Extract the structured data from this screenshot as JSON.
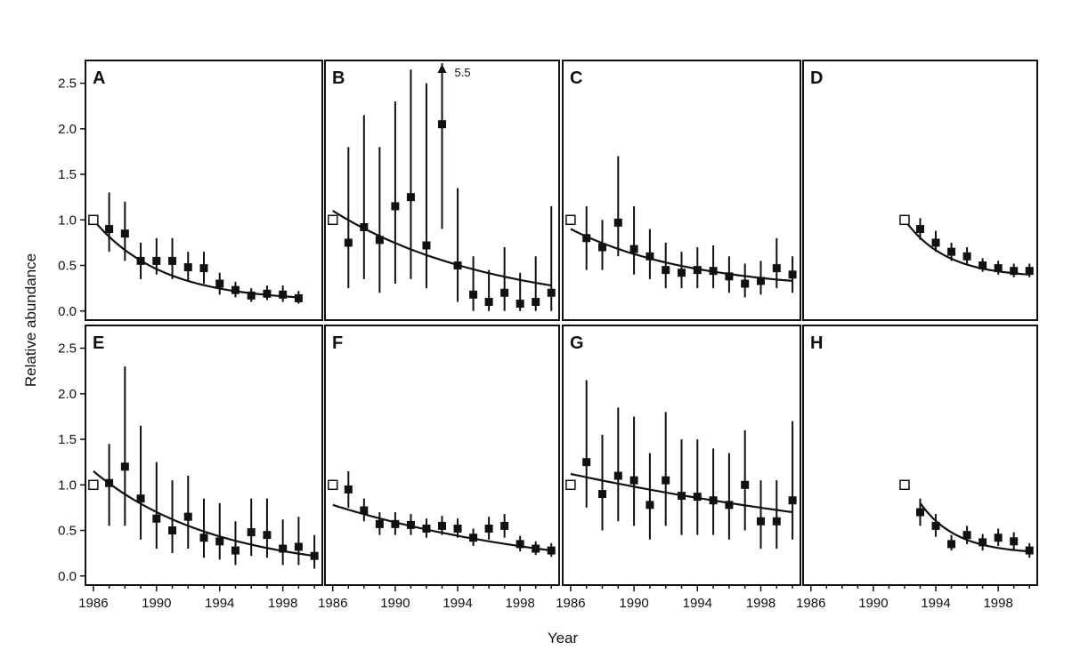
{
  "chart_data": {
    "type": "scatter",
    "xlabel": "Year",
    "ylabel": "Relative abundance",
    "ylim": [
      -0.1,
      2.75
    ],
    "y_ticks": [
      "0.0",
      "0.5",
      "1.0",
      "1.5",
      "2.0",
      "2.5"
    ],
    "x_ticks": [
      "1986",
      "1990",
      "1994",
      "1998"
    ],
    "xlim": [
      1985.5,
      2000.5
    ],
    "marker_legend": "open square = 1.0 reference",
    "panels": [
      {
        "letter": "A",
        "ref_year": 1986,
        "points": [
          {
            "year": 1987,
            "y": 0.9,
            "lo": 0.65,
            "hi": 1.3
          },
          {
            "year": 1988,
            "y": 0.85,
            "lo": 0.55,
            "hi": 1.2
          },
          {
            "year": 1989,
            "y": 0.55,
            "lo": 0.35,
            "hi": 0.75
          },
          {
            "year": 1990,
            "y": 0.55,
            "lo": 0.4,
            "hi": 0.8
          },
          {
            "year": 1991,
            "y": 0.55,
            "lo": 0.35,
            "hi": 0.8
          },
          {
            "year": 1992,
            "y": 0.48,
            "lo": 0.32,
            "hi": 0.65
          },
          {
            "year": 1993,
            "y": 0.47,
            "lo": 0.3,
            "hi": 0.65
          },
          {
            "year": 1994,
            "y": 0.3,
            "lo": 0.18,
            "hi": 0.42
          },
          {
            "year": 1995,
            "y": 0.23,
            "lo": 0.15,
            "hi": 0.32
          },
          {
            "year": 1996,
            "y": 0.17,
            "lo": 0.1,
            "hi": 0.25
          },
          {
            "year": 1997,
            "y": 0.19,
            "lo": 0.12,
            "hi": 0.28
          },
          {
            "year": 1998,
            "y": 0.18,
            "lo": 0.1,
            "hi": 0.28
          },
          {
            "year": 1999,
            "y": 0.14,
            "lo": 0.08,
            "hi": 0.22
          }
        ],
        "fit": {
          "start_year": 1986,
          "end_year": 1999,
          "y0": 1.0,
          "y1": 0.15,
          "curve": 1.0
        }
      },
      {
        "letter": "B",
        "ref_year": 1986,
        "note": "5.5",
        "arrow_year": 1993,
        "points": [
          {
            "year": 1987,
            "y": 0.75,
            "lo": 0.25,
            "hi": 1.8
          },
          {
            "year": 1988,
            "y": 0.92,
            "lo": 0.35,
            "hi": 2.15
          },
          {
            "year": 1989,
            "y": 0.78,
            "lo": 0.2,
            "hi": 1.8
          },
          {
            "year": 1990,
            "y": 1.15,
            "lo": 0.3,
            "hi": 2.3
          },
          {
            "year": 1991,
            "y": 1.25,
            "lo": 0.35,
            "hi": 2.65
          },
          {
            "year": 1992,
            "y": 0.72,
            "lo": 0.25,
            "hi": 2.5
          },
          {
            "year": 1993,
            "y": 2.05,
            "lo": 0.9,
            "hi": 2.72
          },
          {
            "year": 1994,
            "y": 0.5,
            "lo": 0.1,
            "hi": 1.35
          },
          {
            "year": 1995,
            "y": 0.18,
            "lo": 0.0,
            "hi": 0.6
          },
          {
            "year": 1996,
            "y": 0.1,
            "lo": 0.0,
            "hi": 0.45
          },
          {
            "year": 1997,
            "y": 0.2,
            "lo": 0.0,
            "hi": 0.7
          },
          {
            "year": 1998,
            "y": 0.08,
            "lo": 0.0,
            "hi": 0.42
          },
          {
            "year": 1999,
            "y": 0.1,
            "lo": 0.0,
            "hi": 0.6
          },
          {
            "year": 2000,
            "y": 0.2,
            "lo": 0.0,
            "hi": 1.15
          }
        ],
        "fit": {
          "start_year": 1986,
          "end_year": 2000,
          "y0": 1.1,
          "y1": 0.28,
          "curve": 0.45
        }
      },
      {
        "letter": "C",
        "ref_year": 1986,
        "points": [
          {
            "year": 1987,
            "y": 0.8,
            "lo": 0.45,
            "hi": 1.15
          },
          {
            "year": 1988,
            "y": 0.7,
            "lo": 0.45,
            "hi": 1.0
          },
          {
            "year": 1989,
            "y": 0.97,
            "lo": 0.6,
            "hi": 1.7
          },
          {
            "year": 1990,
            "y": 0.68,
            "lo": 0.4,
            "hi": 1.15
          },
          {
            "year": 1991,
            "y": 0.6,
            "lo": 0.35,
            "hi": 0.9
          },
          {
            "year": 1992,
            "y": 0.45,
            "lo": 0.25,
            "hi": 0.75
          },
          {
            "year": 1993,
            "y": 0.42,
            "lo": 0.25,
            "hi": 0.65
          },
          {
            "year": 1994,
            "y": 0.45,
            "lo": 0.25,
            "hi": 0.7
          },
          {
            "year": 1995,
            "y": 0.44,
            "lo": 0.25,
            "hi": 0.72
          },
          {
            "year": 1996,
            "y": 0.38,
            "lo": 0.2,
            "hi": 0.6
          },
          {
            "year": 1997,
            "y": 0.3,
            "lo": 0.15,
            "hi": 0.52
          },
          {
            "year": 1998,
            "y": 0.33,
            "lo": 0.18,
            "hi": 0.55
          },
          {
            "year": 1999,
            "y": 0.47,
            "lo": 0.25,
            "hi": 0.8
          },
          {
            "year": 2000,
            "y": 0.4,
            "lo": 0.2,
            "hi": 0.6
          }
        ],
        "fit": {
          "start_year": 1986,
          "end_year": 2000,
          "y0": 0.9,
          "y1": 0.33,
          "curve": 0.6
        }
      },
      {
        "letter": "D",
        "ref_year": 1992,
        "points": [
          {
            "year": 1993,
            "y": 0.9,
            "lo": 0.78,
            "hi": 1.02
          },
          {
            "year": 1994,
            "y": 0.75,
            "lo": 0.65,
            "hi": 0.88
          },
          {
            "year": 1995,
            "y": 0.65,
            "lo": 0.55,
            "hi": 0.75
          },
          {
            "year": 1996,
            "y": 0.6,
            "lo": 0.5,
            "hi": 0.7
          },
          {
            "year": 1997,
            "y": 0.5,
            "lo": 0.43,
            "hi": 0.58
          },
          {
            "year": 1998,
            "y": 0.47,
            "lo": 0.4,
            "hi": 0.55
          },
          {
            "year": 1999,
            "y": 0.44,
            "lo": 0.37,
            "hi": 0.52
          },
          {
            "year": 2000,
            "y": 0.44,
            "lo": 0.37,
            "hi": 0.52
          }
        ],
        "fit": {
          "start_year": 1992,
          "end_year": 2000,
          "y0": 1.0,
          "y1": 0.4,
          "curve": 1.0
        }
      },
      {
        "letter": "E",
        "ref_year": 1986,
        "points": [
          {
            "year": 1987,
            "y": 1.02,
            "lo": 0.55,
            "hi": 1.45
          },
          {
            "year": 1988,
            "y": 1.2,
            "lo": 0.55,
            "hi": 2.3
          },
          {
            "year": 1989,
            "y": 0.85,
            "lo": 0.4,
            "hi": 1.65
          },
          {
            "year": 1990,
            "y": 0.63,
            "lo": 0.3,
            "hi": 1.25
          },
          {
            "year": 1991,
            "y": 0.5,
            "lo": 0.25,
            "hi": 1.05
          },
          {
            "year": 1992,
            "y": 0.65,
            "lo": 0.3,
            "hi": 1.1
          },
          {
            "year": 1993,
            "y": 0.42,
            "lo": 0.2,
            "hi": 0.85
          },
          {
            "year": 1994,
            "y": 0.38,
            "lo": 0.18,
            "hi": 0.8
          },
          {
            "year": 1995,
            "y": 0.28,
            "lo": 0.12,
            "hi": 0.6
          },
          {
            "year": 1996,
            "y": 0.48,
            "lo": 0.22,
            "hi": 0.85
          },
          {
            "year": 1997,
            "y": 0.45,
            "lo": 0.2,
            "hi": 0.85
          },
          {
            "year": 1998,
            "y": 0.3,
            "lo": 0.12,
            "hi": 0.62
          },
          {
            "year": 1999,
            "y": 0.32,
            "lo": 0.12,
            "hi": 0.65
          },
          {
            "year": 2000,
            "y": 0.22,
            "lo": 0.08,
            "hi": 0.45
          }
        ],
        "fit": {
          "start_year": 1986,
          "end_year": 2000,
          "y0": 1.15,
          "y1": 0.22,
          "curve": 0.6
        }
      },
      {
        "letter": "F",
        "ref_year": 1986,
        "points": [
          {
            "year": 1987,
            "y": 0.95,
            "lo": 0.75,
            "hi": 1.15
          },
          {
            "year": 1988,
            "y": 0.72,
            "lo": 0.6,
            "hi": 0.85
          },
          {
            "year": 1989,
            "y": 0.57,
            "lo": 0.45,
            "hi": 0.7
          },
          {
            "year": 1990,
            "y": 0.57,
            "lo": 0.45,
            "hi": 0.7
          },
          {
            "year": 1991,
            "y": 0.56,
            "lo": 0.45,
            "hi": 0.68
          },
          {
            "year": 1992,
            "y": 0.52,
            "lo": 0.42,
            "hi": 0.63
          },
          {
            "year": 1993,
            "y": 0.55,
            "lo": 0.45,
            "hi": 0.66
          },
          {
            "year": 1994,
            "y": 0.52,
            "lo": 0.42,
            "hi": 0.63
          },
          {
            "year": 1995,
            "y": 0.42,
            "lo": 0.33,
            "hi": 0.52
          },
          {
            "year": 1996,
            "y": 0.52,
            "lo": 0.4,
            "hi": 0.65
          },
          {
            "year": 1997,
            "y": 0.55,
            "lo": 0.42,
            "hi": 0.68
          },
          {
            "year": 1998,
            "y": 0.35,
            "lo": 0.27,
            "hi": 0.44
          },
          {
            "year": 1999,
            "y": 0.3,
            "lo": 0.23,
            "hi": 0.38
          },
          {
            "year": 2000,
            "y": 0.28,
            "lo": 0.21,
            "hi": 0.36
          }
        ],
        "fit": {
          "start_year": 1986,
          "end_year": 2000,
          "y0": 0.78,
          "y1": 0.28,
          "curve": 0.3
        }
      },
      {
        "letter": "G",
        "ref_year": 1986,
        "points": [
          {
            "year": 1987,
            "y": 1.25,
            "lo": 0.75,
            "hi": 2.15
          },
          {
            "year": 1988,
            "y": 0.9,
            "lo": 0.5,
            "hi": 1.55
          },
          {
            "year": 1989,
            "y": 1.1,
            "lo": 0.6,
            "hi": 1.85
          },
          {
            "year": 1990,
            "y": 1.05,
            "lo": 0.55,
            "hi": 1.75
          },
          {
            "year": 1991,
            "y": 0.78,
            "lo": 0.4,
            "hi": 1.35
          },
          {
            "year": 1992,
            "y": 1.05,
            "lo": 0.55,
            "hi": 1.8
          },
          {
            "year": 1993,
            "y": 0.88,
            "lo": 0.45,
            "hi": 1.5
          },
          {
            "year": 1994,
            "y": 0.87,
            "lo": 0.45,
            "hi": 1.5
          },
          {
            "year": 1995,
            "y": 0.83,
            "lo": 0.45,
            "hi": 1.4
          },
          {
            "year": 1996,
            "y": 0.78,
            "lo": 0.4,
            "hi": 1.35
          },
          {
            "year": 1997,
            "y": 1.0,
            "lo": 0.5,
            "hi": 1.6
          },
          {
            "year": 1998,
            "y": 0.6,
            "lo": 0.3,
            "hi": 1.05
          },
          {
            "year": 1999,
            "y": 0.6,
            "lo": 0.3,
            "hi": 1.05
          },
          {
            "year": 2000,
            "y": 0.83,
            "lo": 0.4,
            "hi": 1.7
          }
        ],
        "fit": {
          "start_year": 1986,
          "end_year": 2000,
          "y0": 1.12,
          "y1": 0.7,
          "curve": 0.15
        }
      },
      {
        "letter": "H",
        "ref_year": 1992,
        "points": [
          {
            "year": 1993,
            "y": 0.7,
            "lo": 0.55,
            "hi": 0.85
          },
          {
            "year": 1994,
            "y": 0.55,
            "lo": 0.43,
            "hi": 0.68
          },
          {
            "year": 1995,
            "y": 0.35,
            "lo": 0.28,
            "hi": 0.45
          },
          {
            "year": 1996,
            "y": 0.45,
            "lo": 0.35,
            "hi": 0.55
          },
          {
            "year": 1997,
            "y": 0.37,
            "lo": 0.28,
            "hi": 0.46
          },
          {
            "year": 1998,
            "y": 0.42,
            "lo": 0.33,
            "hi": 0.52
          },
          {
            "year": 1999,
            "y": 0.38,
            "lo": 0.29,
            "hi": 0.48
          },
          {
            "year": 2000,
            "y": 0.28,
            "lo": 0.2,
            "hi": 0.36
          }
        ],
        "fit": {
          "start_year": 1993,
          "end_year": 2000,
          "y0": 0.8,
          "y1": 0.27,
          "curve": 1.0
        }
      }
    ]
  }
}
